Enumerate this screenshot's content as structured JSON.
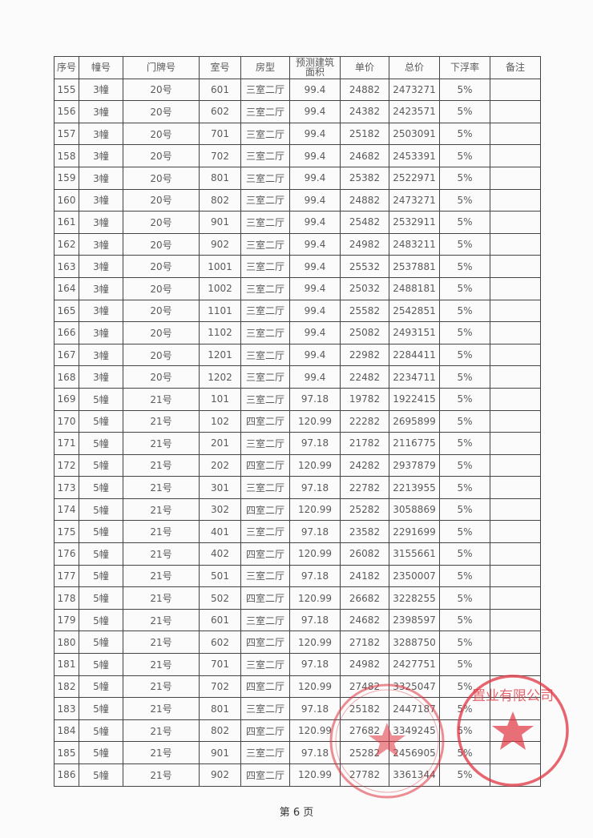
{
  "table": {
    "headers": [
      "序号",
      "幢号",
      "门牌号",
      "室号",
      "房型",
      "预测建筑面积",
      "单价",
      "总价",
      "下浮率",
      "备注"
    ],
    "rows": [
      [
        "155",
        "3幢",
        "20号",
        "601",
        "三室二厅",
        "99.4",
        "24882",
        "2473271",
        "5%",
        ""
      ],
      [
        "156",
        "3幢",
        "20号",
        "602",
        "三室二厅",
        "99.4",
        "24382",
        "2423571",
        "5%",
        ""
      ],
      [
        "157",
        "3幢",
        "20号",
        "701",
        "三室二厅",
        "99.4",
        "25182",
        "2503091",
        "5%",
        ""
      ],
      [
        "158",
        "3幢",
        "20号",
        "702",
        "三室二厅",
        "99.4",
        "24682",
        "2453391",
        "5%",
        ""
      ],
      [
        "159",
        "3幢",
        "20号",
        "801",
        "三室二厅",
        "99.4",
        "25382",
        "2522971",
        "5%",
        ""
      ],
      [
        "160",
        "3幢",
        "20号",
        "802",
        "三室二厅",
        "99.4",
        "24882",
        "2473271",
        "5%",
        ""
      ],
      [
        "161",
        "3幢",
        "20号",
        "901",
        "三室二厅",
        "99.4",
        "25482",
        "2532911",
        "5%",
        ""
      ],
      [
        "162",
        "3幢",
        "20号",
        "902",
        "三室二厅",
        "99.4",
        "24982",
        "2483211",
        "5%",
        ""
      ],
      [
        "163",
        "3幢",
        "20号",
        "1001",
        "三室二厅",
        "99.4",
        "25532",
        "2537881",
        "5%",
        ""
      ],
      [
        "164",
        "3幢",
        "20号",
        "1002",
        "三室二厅",
        "99.4",
        "25032",
        "2488181",
        "5%",
        ""
      ],
      [
        "165",
        "3幢",
        "20号",
        "1101",
        "三室二厅",
        "99.4",
        "25582",
        "2542851",
        "5%",
        ""
      ],
      [
        "166",
        "3幢",
        "20号",
        "1102",
        "三室二厅",
        "99.4",
        "25082",
        "2493151",
        "5%",
        ""
      ],
      [
        "167",
        "3幢",
        "20号",
        "1201",
        "三室二厅",
        "99.4",
        "22982",
        "2284411",
        "5%",
        ""
      ],
      [
        "168",
        "3幢",
        "20号",
        "1202",
        "三室二厅",
        "99.4",
        "22482",
        "2234711",
        "5%",
        ""
      ],
      [
        "169",
        "5幢",
        "21号",
        "101",
        "三室二厅",
        "97.18",
        "19782",
        "1922415",
        "5%",
        ""
      ],
      [
        "170",
        "5幢",
        "21号",
        "102",
        "四室二厅",
        "120.99",
        "22282",
        "2695899",
        "5%",
        ""
      ],
      [
        "171",
        "5幢",
        "21号",
        "201",
        "三室二厅",
        "97.18",
        "21782",
        "2116775",
        "5%",
        ""
      ],
      [
        "172",
        "5幢",
        "21号",
        "202",
        "四室二厅",
        "120.99",
        "24282",
        "2937879",
        "5%",
        ""
      ],
      [
        "173",
        "5幢",
        "21号",
        "301",
        "三室二厅",
        "97.18",
        "22782",
        "2213955",
        "5%",
        ""
      ],
      [
        "174",
        "5幢",
        "21号",
        "302",
        "四室二厅",
        "120.99",
        "25282",
        "3058869",
        "5%",
        ""
      ],
      [
        "175",
        "5幢",
        "21号",
        "401",
        "三室二厅",
        "97.18",
        "23582",
        "2291699",
        "5%",
        ""
      ],
      [
        "176",
        "5幢",
        "21号",
        "402",
        "四室二厅",
        "120.99",
        "26082",
        "3155661",
        "5%",
        ""
      ],
      [
        "177",
        "5幢",
        "21号",
        "501",
        "三室二厅",
        "97.18",
        "24182",
        "2350007",
        "5%",
        ""
      ],
      [
        "178",
        "5幢",
        "21号",
        "502",
        "四室二厅",
        "120.99",
        "26682",
        "3228255",
        "5%",
        ""
      ],
      [
        "179",
        "5幢",
        "21号",
        "601",
        "三室二厅",
        "97.18",
        "24682",
        "2398597",
        "5%",
        ""
      ],
      [
        "180",
        "5幢",
        "21号",
        "602",
        "四室二厅",
        "120.99",
        "27182",
        "3288750",
        "5%",
        ""
      ],
      [
        "181",
        "5幢",
        "21号",
        "701",
        "三室二厅",
        "97.18",
        "24982",
        "2427751",
        "5%",
        ""
      ],
      [
        "182",
        "5幢",
        "21号",
        "702",
        "四室二厅",
        "120.99",
        "27482",
        "3325047",
        "5%",
        ""
      ],
      [
        "183",
        "5幢",
        "21号",
        "801",
        "三室二厅",
        "97.18",
        "25182",
        "2447187",
        "5%",
        ""
      ],
      [
        "184",
        "5幢",
        "21号",
        "802",
        "四室二厅",
        "120.99",
        "27682",
        "3349245",
        "5%",
        ""
      ],
      [
        "185",
        "5幢",
        "21号",
        "901",
        "三室二厅",
        "97.18",
        "25282",
        "2456905",
        "5%",
        ""
      ],
      [
        "186",
        "5幢",
        "21号",
        "902",
        "四室二厅",
        "120.99",
        "27782",
        "3361344",
        "5%",
        ""
      ]
    ]
  },
  "page_number": "第 6 页",
  "stamps": [
    {
      "type": "company-seal",
      "lettering": "置业有限公司",
      "color": "#e0333f"
    },
    {
      "type": "company-seal",
      "lettering": "",
      "color": "#e0333f"
    }
  ]
}
